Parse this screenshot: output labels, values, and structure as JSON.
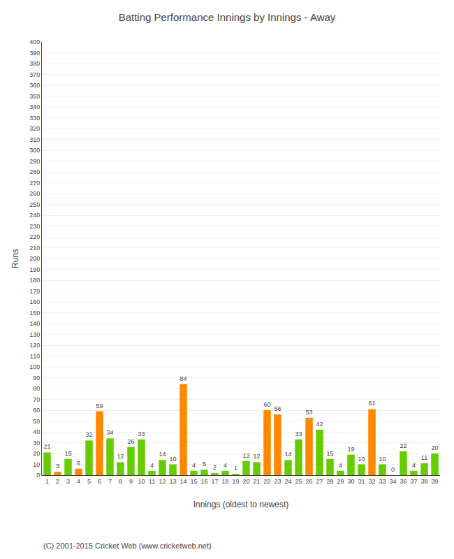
{
  "chart_data": {
    "type": "bar",
    "title": "Batting Performance Innings by Innings - Away",
    "xlabel": "Innings (oldest to newest)",
    "ylabel": "Runs",
    "annotations": [
      "(C) 2001-2015 Cricket Web (www.cricketweb.net)"
    ],
    "categories": [
      "1",
      "2",
      "3",
      "4",
      "5",
      "6",
      "7",
      "8",
      "9",
      "10",
      "11",
      "12",
      "13",
      "14",
      "15",
      "16",
      "17",
      "18",
      "19",
      "20",
      "21",
      "22",
      "23",
      "24",
      "25",
      "26",
      "27",
      "28",
      "29",
      "30",
      "31",
      "32",
      "33",
      "34",
      "36",
      "37",
      "38",
      "39"
    ],
    "values": [
      21,
      3,
      15,
      6,
      32,
      59,
      34,
      12,
      26,
      33,
      4,
      14,
      10,
      84,
      4,
      5,
      2,
      4,
      1,
      13,
      12,
      60,
      56,
      14,
      33,
      53,
      42,
      15,
      4,
      19,
      10,
      61,
      10,
      0,
      22,
      4,
      11,
      20
    ],
    "colors": [
      "#66cc00",
      "#ff8800",
      "#66cc00",
      "#ff8800",
      "#66cc00",
      "#ff8800",
      "#66cc00",
      "#66cc00",
      "#66cc00",
      "#66cc00",
      "#66cc00",
      "#66cc00",
      "#66cc00",
      "#ff8800",
      "#66cc00",
      "#66cc00",
      "#66cc00",
      "#66cc00",
      "#66cc00",
      "#66cc00",
      "#66cc00",
      "#ff8800",
      "#ff8800",
      "#66cc00",
      "#66cc00",
      "#ff8800",
      "#66cc00",
      "#66cc00",
      "#66cc00",
      "#66cc00",
      "#66cc00",
      "#ff8800",
      "#66cc00",
      "#66cc00",
      "#66cc00",
      "#66cc00",
      "#66cc00",
      "#66cc00"
    ],
    "ylim": [
      0,
      400
    ],
    "yticks": [
      0,
      10,
      20,
      30,
      40,
      50,
      60,
      70,
      80,
      90,
      100,
      110,
      120,
      130,
      140,
      150,
      160,
      170,
      180,
      190,
      200,
      210,
      220,
      230,
      240,
      250,
      260,
      270,
      280,
      290,
      300,
      310,
      320,
      330,
      340,
      350,
      360,
      370,
      380,
      390,
      400
    ],
    "grid": true,
    "data_labels": true
  }
}
